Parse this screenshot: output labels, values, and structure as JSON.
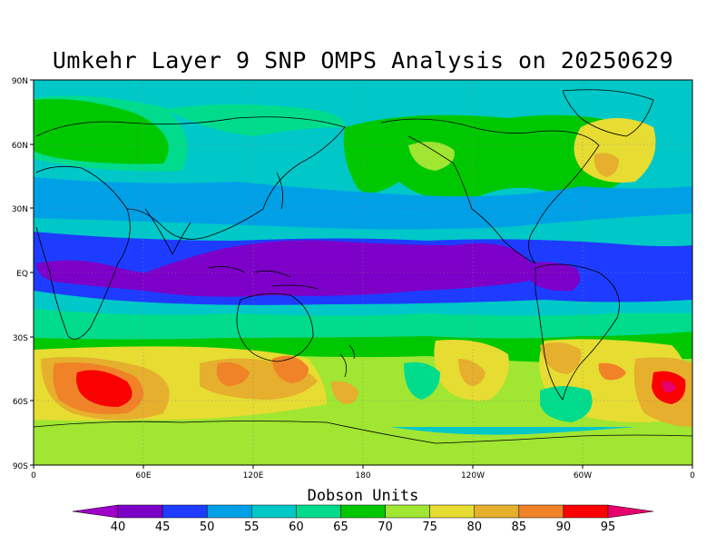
{
  "title": "Umkehr Layer 9 SNP OMPS Analysis on 20250629",
  "colorbar": {
    "title": "Dobson Units",
    "levels": [
      40,
      45,
      50,
      55,
      60,
      65,
      70,
      75,
      80,
      85,
      90,
      95
    ],
    "colors": [
      "#7d00c8",
      "#1e3cff",
      "#00a0e6",
      "#00c8c8",
      "#00dc8c",
      "#00c800",
      "#a0e632",
      "#e6dc32",
      "#e6af2d",
      "#f08228",
      "#fa0000"
    ],
    "low_color": "#a000c8",
    "high_color": "#e6006e"
  },
  "chart_data": {
    "type": "heatmap",
    "title": "Umkehr Layer 9 SNP OMPS Analysis on 20250629",
    "lat_ticks": [
      "90N",
      "60N",
      "30N",
      "EQ",
      "30S",
      "60S",
      "90S"
    ],
    "lon_ticks": [
      "0",
      "60E",
      "120E",
      "180",
      "120W",
      "60W",
      "0"
    ],
    "units": "Dobson Units",
    "grid": "dotted",
    "regions": [
      {
        "id": "tropical-minimum-west-pacific",
        "lon": [
          100,
          240
        ],
        "lat": [
          -8,
          15
        ],
        "value": 40
      },
      {
        "id": "tropical-minimum-atlantic",
        "lon": [
          300,
          330
        ],
        "lat": [
          -10,
          0
        ],
        "value": 40
      },
      {
        "id": "tropical-minimum-indian",
        "lon": [
          10,
          90
        ],
        "lat": [
          -5,
          5
        ],
        "value": 40
      },
      {
        "id": "n-atlantic-maximum",
        "lon": [
          285,
          300
        ],
        "lat": [
          45,
          55
        ],
        "value": 80
      },
      {
        "id": "s-indian-ocean-maximum",
        "lon": [
          20,
          60
        ],
        "lat": [
          -60,
          -45
        ],
        "value": 90
      },
      {
        "id": "s-atlantic-maximum",
        "lon": [
          345,
          360
        ],
        "lat": [
          -60,
          -45
        ],
        "value": 90
      },
      {
        "id": "australia-south-maximum",
        "lon": [
          100,
          150
        ],
        "lat": [
          -55,
          -40
        ],
        "value": 80
      },
      {
        "id": "antarctic",
        "lon": [
          0,
          360
        ],
        "lat": [
          -90,
          -65
        ],
        "value": 70
      }
    ]
  }
}
